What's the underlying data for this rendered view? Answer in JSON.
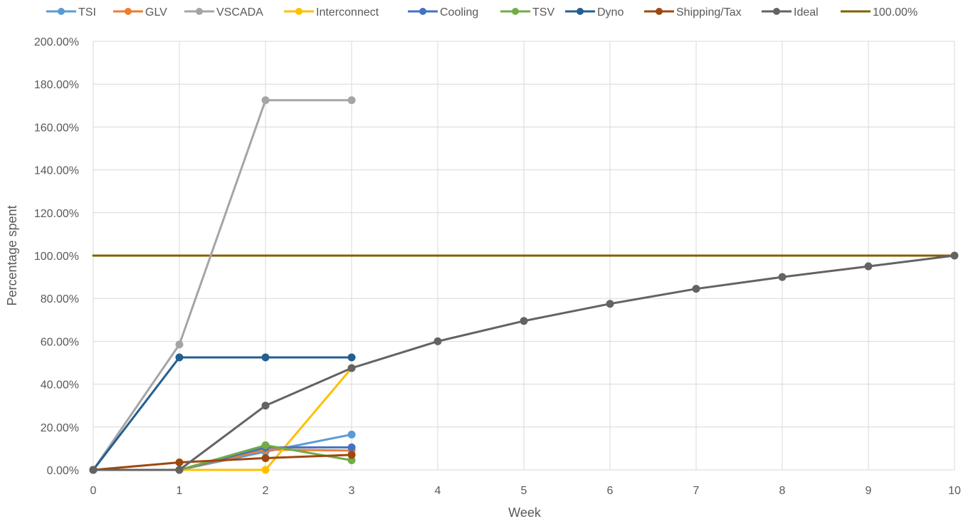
{
  "chart_data": {
    "type": "line",
    "xlabel": "Week",
    "ylabel": "Percentage spent",
    "xlim": [
      0,
      10
    ],
    "ylim": [
      0,
      200
    ],
    "x_ticks": [
      "0",
      "1",
      "2",
      "3",
      "4",
      "5",
      "6",
      "7",
      "8",
      "9",
      "10"
    ],
    "y_ticks": [
      "0.00%",
      "20.00%",
      "40.00%",
      "60.00%",
      "80.00%",
      "100.00%",
      "120.00%",
      "140.00%",
      "160.00%",
      "180.00%",
      "200.00%"
    ],
    "grid": true,
    "legend_position": "top",
    "series": [
      {
        "name": "TSI",
        "color": "#5B9BD5",
        "marker": true,
        "x": [
          0,
          1,
          2,
          3
        ],
        "y": [
          0,
          0,
          8.5,
          16.5
        ]
      },
      {
        "name": "GLV",
        "color": "#ED7D31",
        "marker": true,
        "x": [
          0,
          1,
          2,
          3
        ],
        "y": [
          0,
          0,
          9.5,
          9
        ]
      },
      {
        "name": "VSCADA",
        "color": "#A5A5A5",
        "marker": true,
        "x": [
          0,
          1,
          2,
          3
        ],
        "y": [
          0,
          58.5,
          172.5,
          172.5
        ]
      },
      {
        "name": "Interconnect",
        "color": "#FFC000",
        "marker": true,
        "x": [
          0,
          1,
          2,
          3
        ],
        "y": [
          0,
          0,
          0,
          47.5
        ]
      },
      {
        "name": "Cooling",
        "color": "#4472C4",
        "marker": true,
        "x": [
          0,
          1,
          2,
          3
        ],
        "y": [
          0,
          0,
          10.5,
          10.5
        ]
      },
      {
        "name": "TSV",
        "color": "#70AD47",
        "marker": true,
        "x": [
          0,
          1,
          2,
          3
        ],
        "y": [
          0,
          0,
          11.5,
          4.5
        ]
      },
      {
        "name": "Dyno",
        "color": "#255E91",
        "marker": true,
        "x": [
          0,
          1,
          2,
          3
        ],
        "y": [
          0,
          52.5,
          52.5,
          52.5
        ]
      },
      {
        "name": "Shipping/Tax",
        "color": "#9E480E",
        "marker": true,
        "x": [
          0,
          1,
          2,
          3
        ],
        "y": [
          0,
          3.5,
          5.5,
          7
        ]
      },
      {
        "name": "Ideal",
        "color": "#636363",
        "marker": true,
        "x": [
          0,
          1,
          2,
          3,
          4,
          5,
          6,
          7,
          8,
          9,
          10
        ],
        "y": [
          0,
          0,
          30,
          47.5,
          60,
          69.5,
          77.5,
          84.5,
          90,
          95,
          100
        ]
      },
      {
        "name": "100.00%",
        "color": "#806000",
        "marker": false,
        "x": [
          0,
          10
        ],
        "y": [
          100,
          100
        ]
      }
    ]
  }
}
